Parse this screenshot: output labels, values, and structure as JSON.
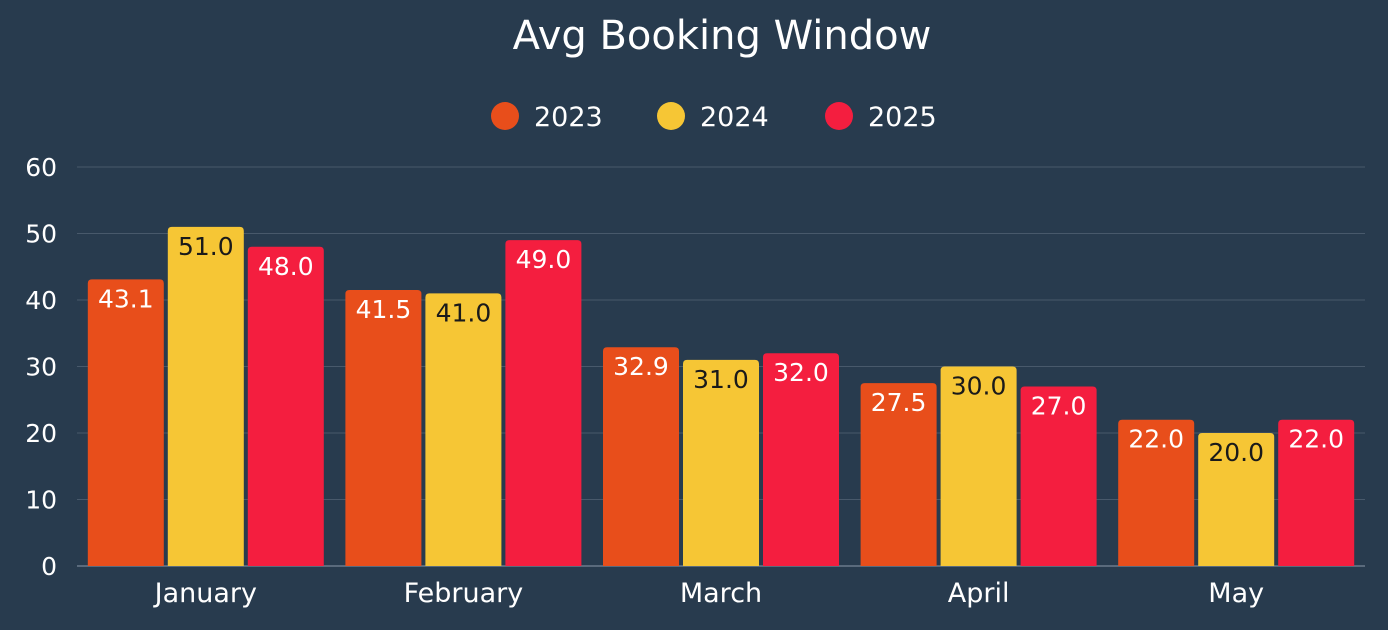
{
  "chart_data": {
    "type": "bar",
    "title": "Avg Booking Window",
    "xlabel": "",
    "ylabel": "",
    "ylim": [
      0,
      60
    ],
    "yticks": [
      0,
      10,
      20,
      30,
      40,
      50,
      60
    ],
    "grid": true,
    "legend_position": "top-center",
    "categories": [
      "January",
      "February",
      "March",
      "April",
      "May"
    ],
    "series": [
      {
        "name": "2023",
        "color": "#e84e1b",
        "label_color": "#ffffff",
        "values": [
          43.1,
          41.5,
          32.9,
          27.5,
          22.0
        ],
        "labels": [
          "43.1",
          "41.5",
          "32.9",
          "27.5",
          "22.0"
        ]
      },
      {
        "name": "2024",
        "color": "#f6c635",
        "label_color": "#1a1a1a",
        "values": [
          51.0,
          41.0,
          31.0,
          30.0,
          20.0
        ],
        "labels": [
          "51.0",
          "41.0",
          "31.0",
          "30.0",
          "20.0"
        ]
      },
      {
        "name": "2025",
        "color": "#f41e3f",
        "label_color": "#ffffff",
        "values": [
          48.0,
          49.0,
          32.0,
          27.0,
          22.0
        ],
        "labels": [
          "48.0",
          "49.0",
          "32.0",
          "27.0",
          "22.0"
        ]
      }
    ]
  }
}
